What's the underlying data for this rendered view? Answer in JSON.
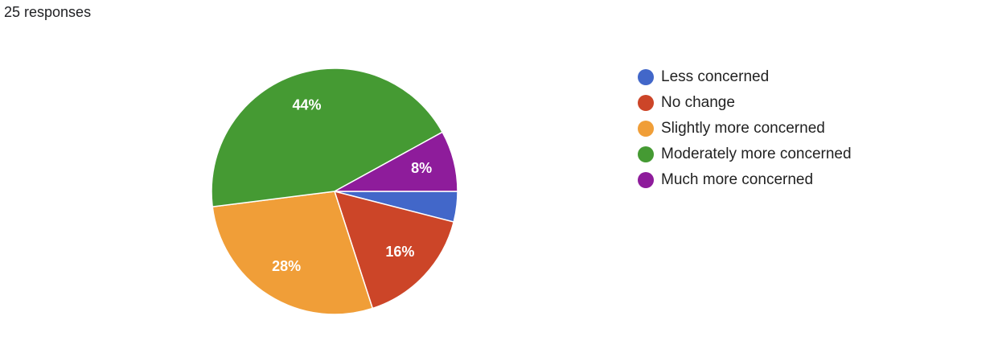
{
  "chart_data": {
    "type": "pie",
    "subtitle": "25 responses",
    "categories": [
      "Less concerned",
      "No change",
      "Slightly more concerned",
      "Moderately more concerned",
      "Much more concerned"
    ],
    "values": [
      4,
      16,
      28,
      44,
      8
    ],
    "value_labels": [
      null,
      "16%",
      "28%",
      "44%",
      "8%"
    ],
    "colors": [
      "#4267c9",
      "#cc4528",
      "#f09e38",
      "#459a33",
      "#8e1c9b"
    ],
    "legend": "right"
  }
}
